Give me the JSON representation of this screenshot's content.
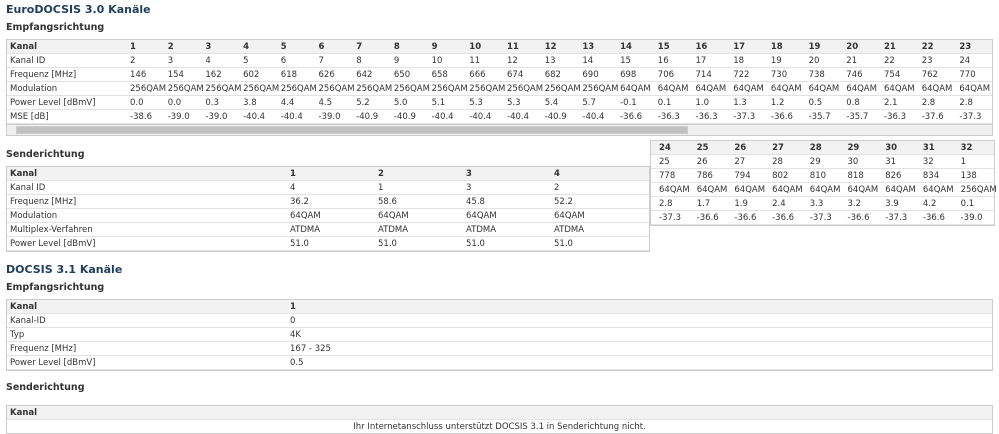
{
  "docsis30": {
    "title": "EuroDOCSIS 3.0 Kanäle",
    "downstream": {
      "title": "Empfangsrichtung",
      "rows": [
        {
          "label": "Kanal",
          "values": [
            "1",
            "2",
            "3",
            "4",
            "5",
            "6",
            "7",
            "8",
            "9",
            "10",
            "11",
            "12",
            "13",
            "14",
            "15",
            "16",
            "17",
            "18",
            "19",
            "20",
            "21",
            "22",
            "23",
            "24",
            "25",
            "26",
            "27",
            "28",
            "29",
            "30",
            "31",
            "32"
          ]
        },
        {
          "label": "Kanal ID",
          "values": [
            "2",
            "3",
            "4",
            "5",
            "6",
            "7",
            "8",
            "9",
            "10",
            "11",
            "12",
            "13",
            "14",
            "15",
            "16",
            "17",
            "18",
            "19",
            "20",
            "21",
            "22",
            "23",
            "24",
            "25",
            "26",
            "27",
            "28",
            "29",
            "30",
            "31",
            "32",
            "1"
          ]
        },
        {
          "label": "Frequenz [MHz]",
          "values": [
            "146",
            "154",
            "162",
            "602",
            "618",
            "626",
            "642",
            "650",
            "658",
            "666",
            "674",
            "682",
            "690",
            "698",
            "706",
            "714",
            "722",
            "730",
            "738",
            "746",
            "754",
            "762",
            "770",
            "778",
            "786",
            "794",
            "802",
            "810",
            "818",
            "826",
            "834",
            "138"
          ]
        },
        {
          "label": "Modulation",
          "values": [
            "256QAM",
            "256QAM",
            "256QAM",
            "256QAM",
            "256QAM",
            "256QAM",
            "256QAM",
            "256QAM",
            "256QAM",
            "256QAM",
            "256QAM",
            "256QAM",
            "256QAM",
            "64QAM",
            "64QAM",
            "64QAM",
            "64QAM",
            "64QAM",
            "64QAM",
            "64QAM",
            "64QAM",
            "64QAM",
            "64QAM",
            "64QAM",
            "64QAM",
            "64QAM",
            "64QAM",
            "64QAM",
            "64QAM",
            "64QAM",
            "64QAM",
            "256QAM"
          ]
        },
        {
          "label": "Power Level [dBmV]",
          "values": [
            "0.0",
            "0.0",
            "0.3",
            "3.8",
            "4.4",
            "4.5",
            "5.2",
            "5.0",
            "5.1",
            "5.3",
            "5.3",
            "5.4",
            "5.7",
            "-0.1",
            "0.1",
            "1.0",
            "1.3",
            "1.2",
            "0.5",
            "0.8",
            "2.1",
            "2.8",
            "2.8",
            "2.8",
            "1.7",
            "1.9",
            "2.4",
            "3.3",
            "3.2",
            "3.9",
            "4.2",
            "0.1"
          ]
        },
        {
          "label": "MSE [dB]",
          "values": [
            "-38.6",
            "-39.0",
            "-39.0",
            "-40.4",
            "-40.4",
            "-39.0",
            "-40.9",
            "-40.9",
            "-40.4",
            "-40.4",
            "-40.4",
            "-40.9",
            "-40.4",
            "-36.6",
            "-36.3",
            "-36.3",
            "-37.3",
            "-36.6",
            "-35.7",
            "-35.7",
            "-36.3",
            "-37.6",
            "-37.3",
            "-37.3",
            "-36.6",
            "-36.6",
            "-36.6",
            "-37.3",
            "-36.6",
            "-37.3",
            "-36.6",
            "-39.0"
          ]
        }
      ]
    },
    "upstream": {
      "title": "Senderichtung",
      "rows": [
        {
          "label": "Kanal",
          "values": [
            "1",
            "2",
            "3",
            "4"
          ]
        },
        {
          "label": "Kanal ID",
          "values": [
            "4",
            "1",
            "3",
            "2"
          ]
        },
        {
          "label": "Frequenz [MHz]",
          "values": [
            "36.2",
            "58.6",
            "45.8",
            "52.2"
          ]
        },
        {
          "label": "Modulation",
          "values": [
            "64QAM",
            "64QAM",
            "64QAM",
            "64QAM"
          ]
        },
        {
          "label": "Multiplex-Verfahren",
          "values": [
            "ATDMA",
            "ATDMA",
            "ATDMA",
            "ATDMA"
          ]
        },
        {
          "label": "Power Level [dBmV]",
          "values": [
            "51.0",
            "51.0",
            "51.0",
            "51.0"
          ]
        }
      ]
    }
  },
  "docsis31": {
    "title": "DOCSIS 3.1 Kanäle",
    "downstream": {
      "title": "Empfangsrichtung",
      "rows": [
        {
          "label": "Kanal",
          "values": [
            "1"
          ]
        },
        {
          "label": "Kanal-ID",
          "values": [
            "0"
          ]
        },
        {
          "label": "Typ",
          "values": [
            "4K"
          ]
        },
        {
          "label": "Frequenz [MHz]",
          "values": [
            "167 - 325"
          ]
        },
        {
          "label": "Power Level [dBmV]",
          "values": [
            "0.5"
          ]
        }
      ]
    },
    "upstream": {
      "title": "Senderichtung",
      "header": "Kanal",
      "message": "Ihr Internetanschluss unterstützt DOCSIS 3.1 in Senderichtung nicht."
    }
  }
}
